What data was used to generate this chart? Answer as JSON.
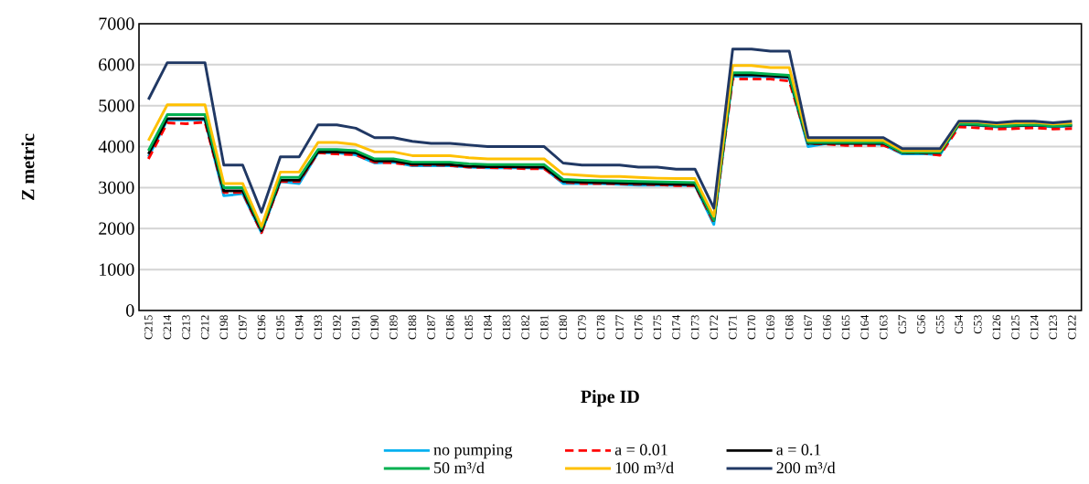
{
  "chart_data": {
    "type": "line",
    "xlabel": "Pipe ID",
    "ylabel": "Z metric",
    "categories": [
      "C215",
      "C214",
      "C213",
      "C212",
      "C198",
      "C197",
      "C196",
      "C195",
      "C194",
      "C193",
      "C192",
      "C191",
      "C190",
      "C189",
      "C188",
      "C187",
      "C186",
      "C185",
      "C184",
      "C183",
      "C182",
      "C181",
      "C180",
      "C179",
      "C178",
      "C177",
      "C176",
      "C175",
      "C174",
      "C173",
      "C172",
      "C171",
      "C170",
      "C169",
      "C168",
      "C167",
      "C166",
      "C165",
      "C164",
      "C163",
      "C57",
      "C56",
      "C55",
      "C54",
      "C53",
      "C126",
      "C125",
      "C124",
      "C123",
      "C122"
    ],
    "ylim": [
      0,
      7000
    ],
    "yticks": [
      0,
      1000,
      2000,
      3000,
      4000,
      5000,
      6000,
      7000
    ],
    "grid": "y",
    "legend": "bottom",
    "line_style": "solid",
    "series": [
      {
        "name": "no pumping",
        "color": "#00b0f0",
        "values": [
          3750,
          4650,
          4650,
          4650,
          2800,
          2850,
          1900,
          3150,
          3100,
          3850,
          3850,
          3800,
          3600,
          3620,
          3530,
          3530,
          3530,
          3500,
          3480,
          3480,
          3480,
          3470,
          3100,
          3100,
          3100,
          3080,
          3060,
          3060,
          3060,
          3050,
          2100,
          5720,
          5720,
          5700,
          5680,
          4000,
          4080,
          4080,
          4080,
          4050,
          3820,
          3830,
          3800,
          4540,
          4520,
          4480,
          4500,
          4520,
          4480,
          4500
        ]
      },
      {
        "name": "a = 0.01",
        "color": "#ff0000",
        "line_style": "dashed",
        "values": [
          3700,
          4580,
          4560,
          4600,
          2880,
          2880,
          1900,
          3150,
          3150,
          3850,
          3820,
          3800,
          3620,
          3600,
          3550,
          3550,
          3540,
          3500,
          3490,
          3480,
          3460,
          3460,
          3130,
          3100,
          3100,
          3090,
          3080,
          3070,
          3050,
          3050,
          2150,
          5650,
          5650,
          5650,
          5600,
          4080,
          4060,
          4030,
          4030,
          4030,
          3850,
          3850,
          3790,
          4480,
          4460,
          4430,
          4440,
          4460,
          4430,
          4440
        ]
      },
      {
        "name": "a = 0.1",
        "color": "#000000",
        "values": [
          3820,
          4680,
          4680,
          4680,
          2920,
          2920,
          1950,
          3180,
          3180,
          3880,
          3870,
          3850,
          3650,
          3650,
          3570,
          3570,
          3560,
          3520,
          3510,
          3510,
          3500,
          3500,
          3150,
          3130,
          3120,
          3110,
          3100,
          3090,
          3080,
          3070,
          2200,
          5750,
          5750,
          5730,
          5700,
          4080,
          4080,
          4080,
          4080,
          4080,
          3850,
          3850,
          3850,
          4550,
          4530,
          4500,
          4510,
          4530,
          4500,
          4520
        ]
      },
      {
        "name": "50 m³/d",
        "color": "#00b050",
        "values": [
          3900,
          4780,
          4780,
          4780,
          3000,
          3000,
          2000,
          3250,
          3250,
          3930,
          3930,
          3900,
          3700,
          3700,
          3620,
          3620,
          3620,
          3580,
          3560,
          3560,
          3560,
          3560,
          3200,
          3180,
          3170,
          3160,
          3150,
          3140,
          3130,
          3120,
          2200,
          5800,
          5800,
          5770,
          5740,
          4100,
          4100,
          4100,
          4100,
          4100,
          3860,
          3860,
          3860,
          4560,
          4540,
          4500,
          4520,
          4540,
          4500,
          4530
        ]
      },
      {
        "name": "100 m³/d",
        "color": "#ffc000",
        "values": [
          4150,
          5020,
          5020,
          5020,
          3100,
          3100,
          2050,
          3380,
          3380,
          4100,
          4100,
          4050,
          3870,
          3870,
          3780,
          3780,
          3780,
          3730,
          3700,
          3700,
          3700,
          3700,
          3330,
          3300,
          3270,
          3270,
          3250,
          3230,
          3220,
          3220,
          2300,
          5980,
          5980,
          5930,
          5930,
          4150,
          4150,
          4150,
          4150,
          4150,
          3900,
          3900,
          3900,
          4600,
          4600,
          4550,
          4580,
          4590,
          4550,
          4580
        ]
      },
      {
        "name": "200 m³/d",
        "color": "#203864",
        "values": [
          5150,
          6050,
          6050,
          6050,
          3550,
          3550,
          2400,
          3750,
          3750,
          4530,
          4530,
          4450,
          4220,
          4220,
          4130,
          4080,
          4080,
          4040,
          4000,
          4000,
          4000,
          4000,
          3600,
          3550,
          3550,
          3550,
          3500,
          3500,
          3450,
          3450,
          2500,
          6380,
          6380,
          6330,
          6330,
          4220,
          4220,
          4220,
          4220,
          4220,
          3950,
          3950,
          3950,
          4620,
          4620,
          4580,
          4620,
          4620,
          4580,
          4620
        ]
      }
    ]
  }
}
